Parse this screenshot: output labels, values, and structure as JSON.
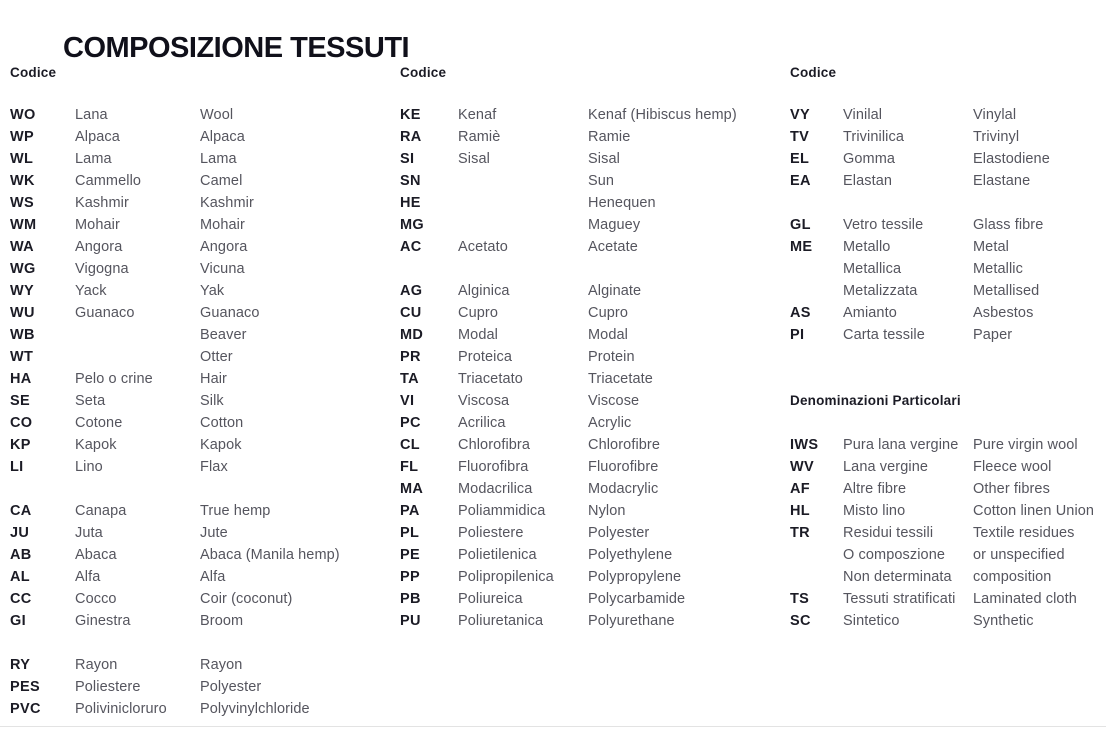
{
  "title": "COMPOSIZIONE TESSUTI",
  "columns": [
    {
      "header": "Codice",
      "blocks": [
        {
          "type": "rows",
          "gap": 0,
          "rows": [
            [
              "WO",
              "Lana",
              "Wool"
            ],
            [
              "WP",
              "Alpaca",
              "Alpaca"
            ],
            [
              "WL",
              "Lama",
              "Lama"
            ],
            [
              "WK",
              "Cammello",
              "Camel"
            ],
            [
              "WS",
              "Kashmir",
              "Kashmir"
            ],
            [
              "WM",
              "Mohair",
              "Mohair"
            ],
            [
              "WA",
              "Angora",
              "Angora"
            ],
            [
              "WG",
              "Vigogna",
              "Vicuna"
            ],
            [
              "WY",
              "Yack",
              "Yak"
            ],
            [
              "WU",
              "Guanaco",
              "Guanaco"
            ],
            [
              "WB",
              "",
              "Beaver"
            ],
            [
              "WT",
              "",
              "Otter"
            ],
            [
              "HA",
              "Pelo o crine",
              "Hair"
            ],
            [
              "SE",
              "Seta",
              "Silk"
            ],
            [
              "CO",
              "Cotone",
              "Cotton"
            ],
            [
              "KP",
              "Kapok",
              "Kapok"
            ],
            [
              "LI",
              "Lino",
              "Flax"
            ]
          ]
        },
        {
          "type": "rows",
          "gap": 1,
          "rows": [
            [
              "CA",
              "Canapa",
              "True hemp"
            ],
            [
              "JU",
              "Juta",
              "Jute"
            ],
            [
              "AB",
              "Abaca",
              "Abaca (Manila hemp)"
            ],
            [
              "AL",
              "Alfa",
              "Alfa"
            ],
            [
              "CC",
              "Cocco",
              "Coir (coconut)"
            ],
            [
              "GI",
              "Ginestra",
              "Broom"
            ]
          ]
        },
        {
          "type": "rows",
          "gap": 1,
          "rows": [
            [
              "RY",
              "Rayon",
              "Rayon"
            ],
            [
              "PES",
              "Poliestere",
              "Polyester"
            ],
            [
              "PVC",
              "Polivinicloruro",
              "Polyvinylchloride"
            ]
          ]
        }
      ]
    },
    {
      "header": "Codice",
      "blocks": [
        {
          "type": "rows",
          "gap": 0,
          "rows": [
            [
              "KE",
              "Kenaf",
              "Kenaf (Hibiscus hemp)"
            ],
            [
              "RA",
              "Ramiè",
              "Ramie"
            ],
            [
              "SI",
              "Sisal",
              "Sisal"
            ],
            [
              "SN",
              "",
              "Sun"
            ],
            [
              "HE",
              "",
              "Henequen"
            ],
            [
              "MG",
              "",
              "Maguey"
            ],
            [
              "AC",
              "Acetato",
              "Acetate"
            ]
          ]
        },
        {
          "type": "rows",
          "gap": 1,
          "rows": [
            [
              "AG",
              "Alginica",
              "Alginate"
            ],
            [
              "CU",
              "Cupro",
              "Cupro"
            ],
            [
              "MD",
              "Modal",
              "Modal"
            ],
            [
              "PR",
              "Proteica",
              "Protein"
            ],
            [
              "TA",
              "Triacetato",
              "Triacetate"
            ],
            [
              "VI",
              "Viscosa",
              "Viscose"
            ],
            [
              "PC",
              "Acrilica",
              "Acrylic"
            ],
            [
              "CL",
              "Chlorofibra",
              "Chlorofibre"
            ],
            [
              "FL",
              "Fluorofibra",
              "Fluorofibre"
            ],
            [
              "MA",
              "Modacrilica",
              "Modacrylic"
            ],
            [
              "PA",
              "Poliammidica",
              "Nylon"
            ],
            [
              "PL",
              "Poliestere",
              "Polyester"
            ],
            [
              "PE",
              "Polietilenica",
              "Polyethylene"
            ],
            [
              "PP",
              "Polipropilenica",
              "Polypropylene"
            ],
            [
              "PB",
              "Poliureica",
              "Polycarbamide"
            ],
            [
              "PU",
              "Poliuretanica",
              "Polyurethane"
            ]
          ]
        }
      ]
    },
    {
      "header": "Codice",
      "blocks": [
        {
          "type": "rows",
          "gap": 0,
          "rows": [
            [
              "VY",
              "Vinilal",
              "Vinylal"
            ],
            [
              "TV",
              "Trivinilica",
              "Trivinyl"
            ],
            [
              "EL",
              "Gomma",
              "Elastodiene"
            ],
            [
              "EA",
              "Elastan",
              "Elastane"
            ]
          ]
        },
        {
          "type": "rows",
          "gap": 1,
          "rows": [
            [
              "GL",
              "Vetro tessile",
              "Glass fibre"
            ],
            [
              "ME",
              "Metallo",
              "Metal"
            ],
            [
              "",
              "Metallica",
              "Metallic"
            ],
            [
              "",
              "Metalizzata",
              "Metallised"
            ],
            [
              "AS",
              "Amianto",
              "Asbestos"
            ],
            [
              "PI",
              "Carta tessile",
              "Paper"
            ]
          ]
        },
        {
          "type": "subheader",
          "gap": 2,
          "text": "Denominazioni Particolari"
        },
        {
          "type": "rows",
          "gap": 1,
          "rows": [
            [
              "IWS",
              "Pura lana vergine",
              "Pure virgin wool"
            ],
            [
              "WV",
              "Lana vergine",
              "Fleece wool"
            ],
            [
              "AF",
              "Altre fibre",
              "Other fibres"
            ],
            [
              "HL",
              "Misto lino",
              "Cotton linen Union"
            ],
            [
              "TR",
              "Residui tessili",
              "Textile residues"
            ],
            [
              "",
              "O composzione",
              "or unspecified"
            ],
            [
              "",
              "Non determinata",
              "composition"
            ],
            [
              "TS",
              "Tessuti stratificati",
              "Laminated cloth"
            ],
            [
              "SC",
              "Sintetico",
              "Synthetic"
            ]
          ]
        }
      ]
    }
  ],
  "colors": {
    "title": "#10101a",
    "code_text": "#1b1b25",
    "name_text": "#55555e"
  }
}
